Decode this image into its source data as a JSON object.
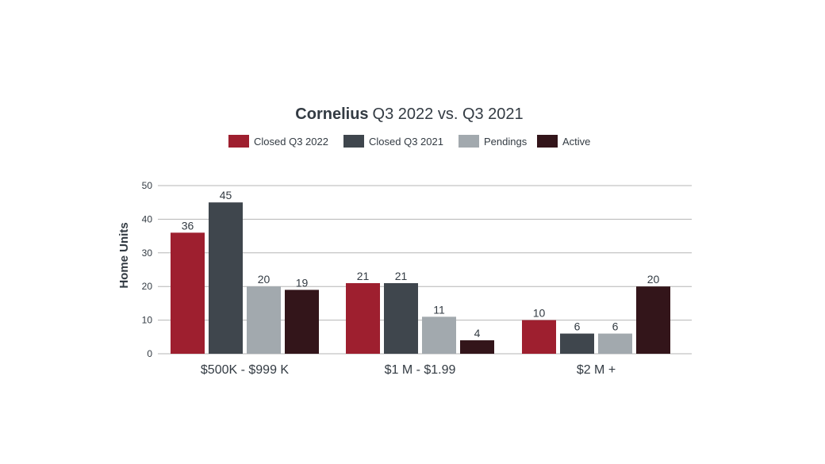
{
  "chart_data": {
    "type": "bar",
    "title_bold": "Cornelius",
    "title_rest": "Q3 2022 vs. Q3 2021",
    "xlabel": "",
    "ylabel": "Home Units",
    "ylim": [
      0,
      50
    ],
    "yticks": [
      0,
      10,
      20,
      30,
      40,
      50
    ],
    "grid": true,
    "legend_position": "top-center",
    "categories": [
      "$500K - $999 K",
      "$1 M - $1.99",
      "$2 M +"
    ],
    "series": [
      {
        "name": "Closed Q3 2022",
        "color": "#9e1f2f",
        "values": [
          36,
          21,
          10
        ]
      },
      {
        "name": "Closed Q3 2021",
        "color": "#3f464d",
        "values": [
          45,
          21,
          6
        ]
      },
      {
        "name": "Pendings",
        "color": "#a2a9ae",
        "values": [
          20,
          11,
          6
        ]
      },
      {
        "name": "Active",
        "color": "#33151a",
        "values": [
          19,
          4,
          20
        ]
      }
    ]
  }
}
